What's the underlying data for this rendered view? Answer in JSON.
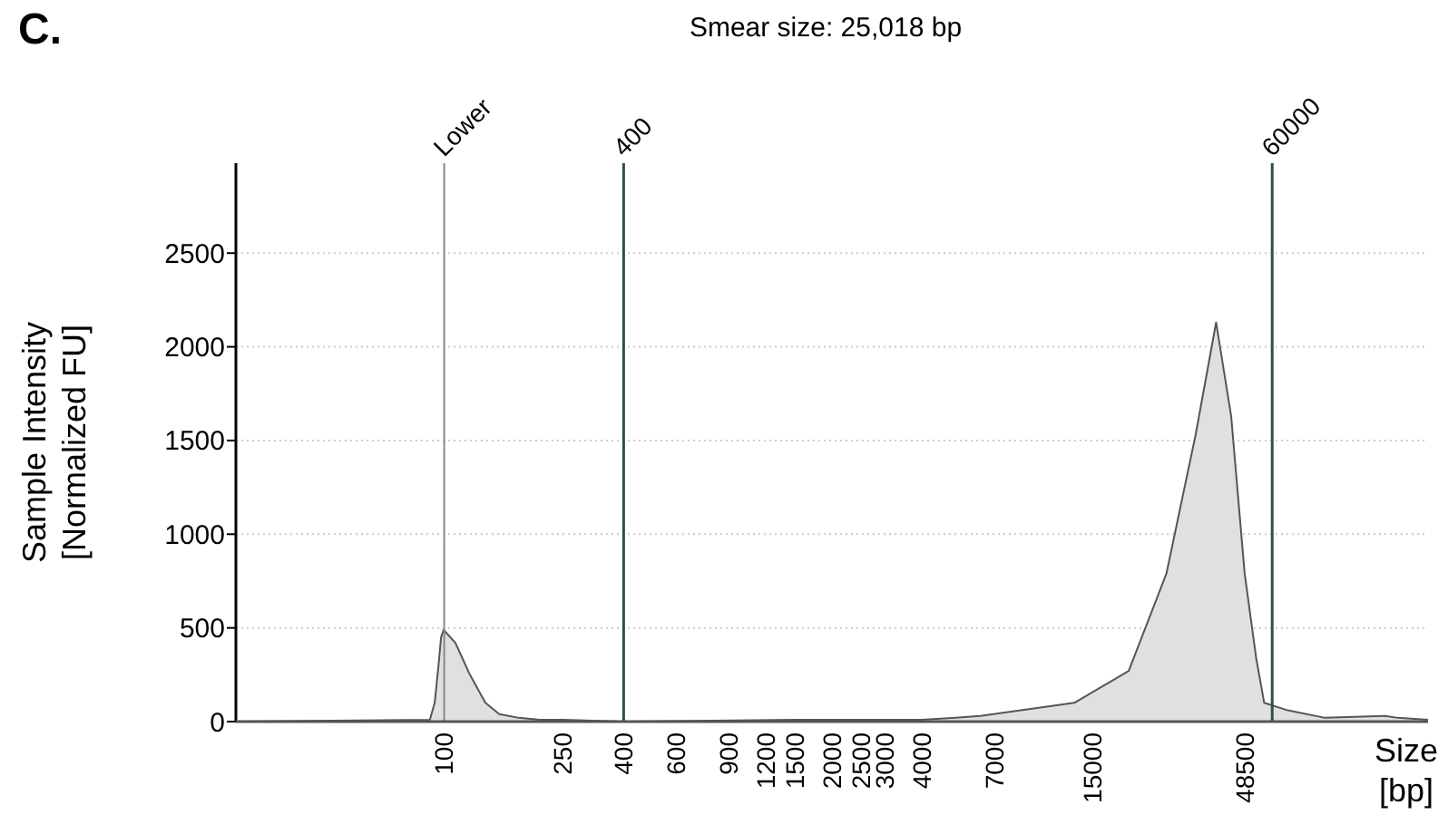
{
  "chart_data": {
    "type": "area",
    "title": "C.",
    "subtitle": "Smear size: 25,018 bp",
    "xlabel": "Size [bp]",
    "ylabel": "Sample Intensity [Normalized FU]",
    "xlim": [
      20,
      200000
    ],
    "log": "x",
    "xticks": [
      100,
      250,
      400,
      600,
      900,
      1200,
      1500,
      2000,
      2500,
      3000,
      4000,
      7000,
      15000,
      48500
    ],
    "ylim": [
      0,
      2980
    ],
    "yticks": [
      0,
      500,
      1000,
      1500,
      2000,
      2500
    ],
    "grid": "y",
    "series": [
      {
        "color": "#e0e0e0",
        "x": [
          20,
          89.5,
          92.9,
          95.7,
          97.6,
          99.5,
          109,
          122,
          137.5,
          153,
          178,
          209,
          250,
          400,
          1500,
          4000,
          5200,
          6300,
          13000,
          19800,
          26500,
          33200,
          38900,
          43700,
          48500,
          53000,
          56400,
          67700,
          90300,
          143500,
          158200,
          200000
        ],
        "values": [
          0,
          10,
          100,
          300,
          450,
          490,
          420,
          250,
          100,
          40,
          20,
          10,
          10,
          0,
          10,
          10,
          20,
          30,
          100,
          270,
          790,
          1530,
          2130,
          1630,
          790,
          340,
          100,
          60,
          20,
          30,
          20,
          10
        ]
      }
    ],
    "ref_lines": [
      {
        "axis": "x",
        "value": 100,
        "label": "Lower",
        "color": "#888888"
      },
      {
        "axis": "x",
        "value": 400,
        "label": "400",
        "color": "#2f4f4f"
      },
      {
        "axis": "x",
        "value": 60000,
        "label": "60000",
        "color": "#2f4f4f"
      }
    ]
  }
}
